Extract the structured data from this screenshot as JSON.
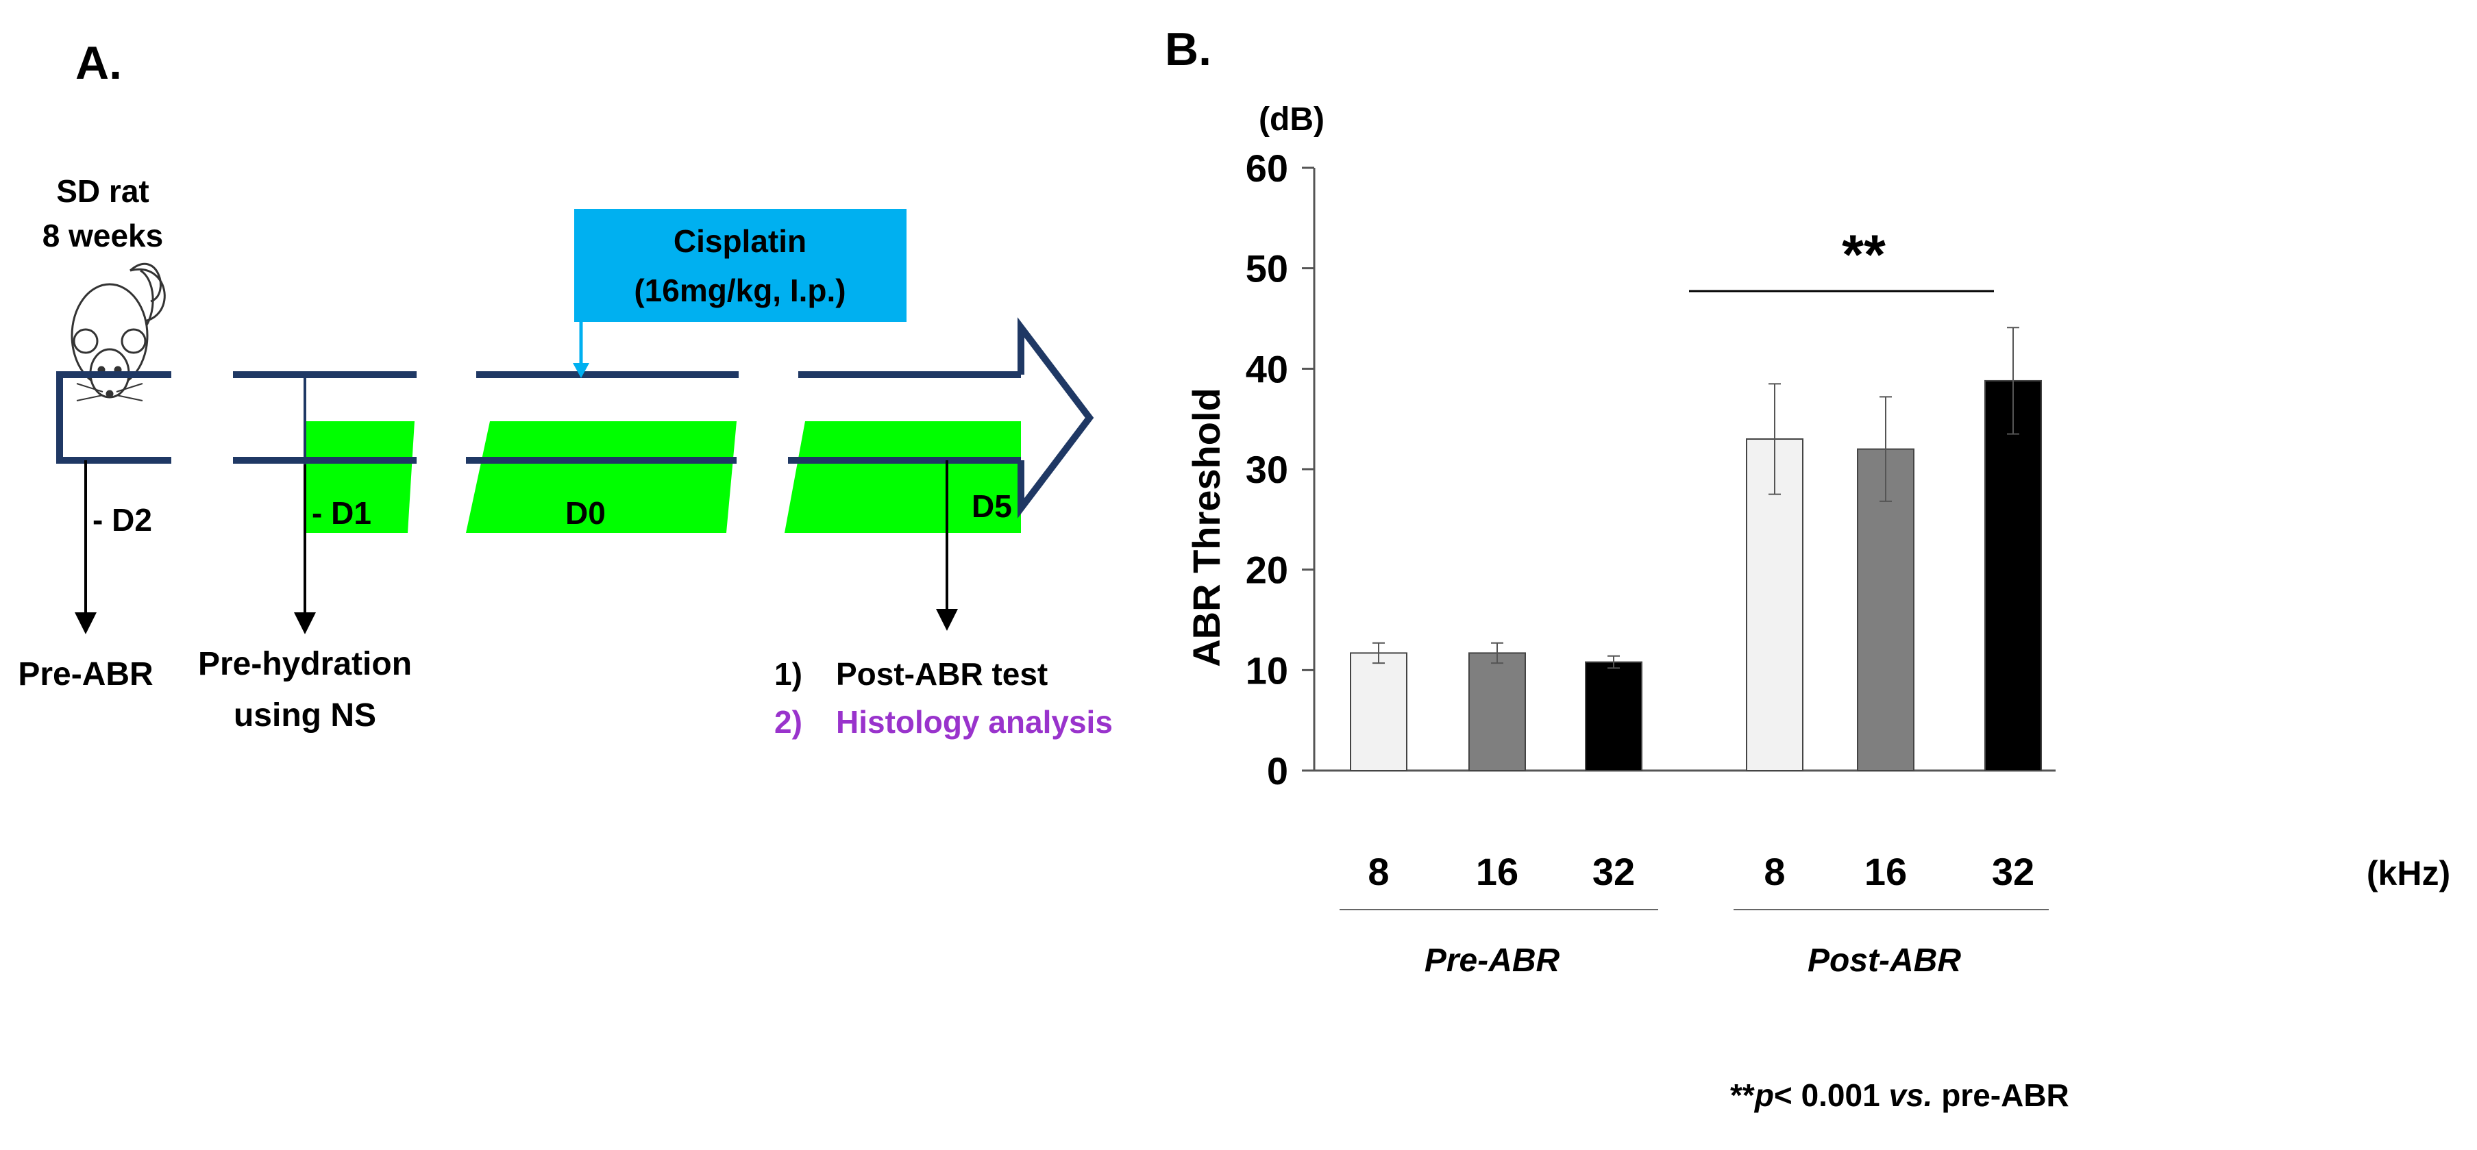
{
  "panel_a": {
    "label": "A.",
    "animal_line1": "SD rat",
    "animal_line2": "8 weeks",
    "drug_line1": "Cisplatin",
    "drug_line2": "(16mg/kg, I.p.)",
    "day_d2": "- D2",
    "day_d1": "- D1",
    "day_d0": "D0",
    "day_d5": "D5",
    "step_pre_abr": "Pre-ABR",
    "step_prehydration_line1": "Pre-hydration",
    "step_prehydration_line2": "using NS",
    "step1_num": "1)",
    "step1_text": "Post-ABR test",
    "step2_num": "2)",
    "step2_text": "Histology analysis",
    "colors": {
      "drug_box": "#00b0f0",
      "treatment": "#00ff00",
      "timeline": "#1f3864",
      "histology": "#9933cc"
    }
  },
  "panel_b": {
    "label": "B.",
    "significance": "**",
    "footnote_stars": "**",
    "footnote_p": "p",
    "footnote_mid": "< 0.001 ",
    "footnote_vs": "vs.",
    "footnote_end": " pre-ABR"
  },
  "chart_data": {
    "type": "bar",
    "ylabel": "ABR Threshold",
    "yunit": "(dB)",
    "xunit": "(kHz)",
    "ylim": [
      0,
      60
    ],
    "yticks": [
      0,
      10,
      20,
      30,
      40,
      50,
      60
    ],
    "categories": [
      "8",
      "16",
      "32",
      "8",
      "16",
      "32"
    ],
    "groups": [
      {
        "name": "Pre-ABR",
        "bars": [
          0,
          1,
          2
        ]
      },
      {
        "name": "Post-ABR",
        "bars": [
          3,
          4,
          5
        ]
      }
    ],
    "values": [
      11.7,
      11.7,
      10.8,
      33.0,
      32.0,
      38.8
    ],
    "errors": [
      1.0,
      1.0,
      0.6,
      5.5,
      5.2,
      5.3
    ],
    "bar_colors": [
      "#f2f2f2",
      "#7f7f7f",
      "#000000",
      "#f2f2f2",
      "#7f7f7f",
      "#000000"
    ],
    "significance_label": "**"
  }
}
